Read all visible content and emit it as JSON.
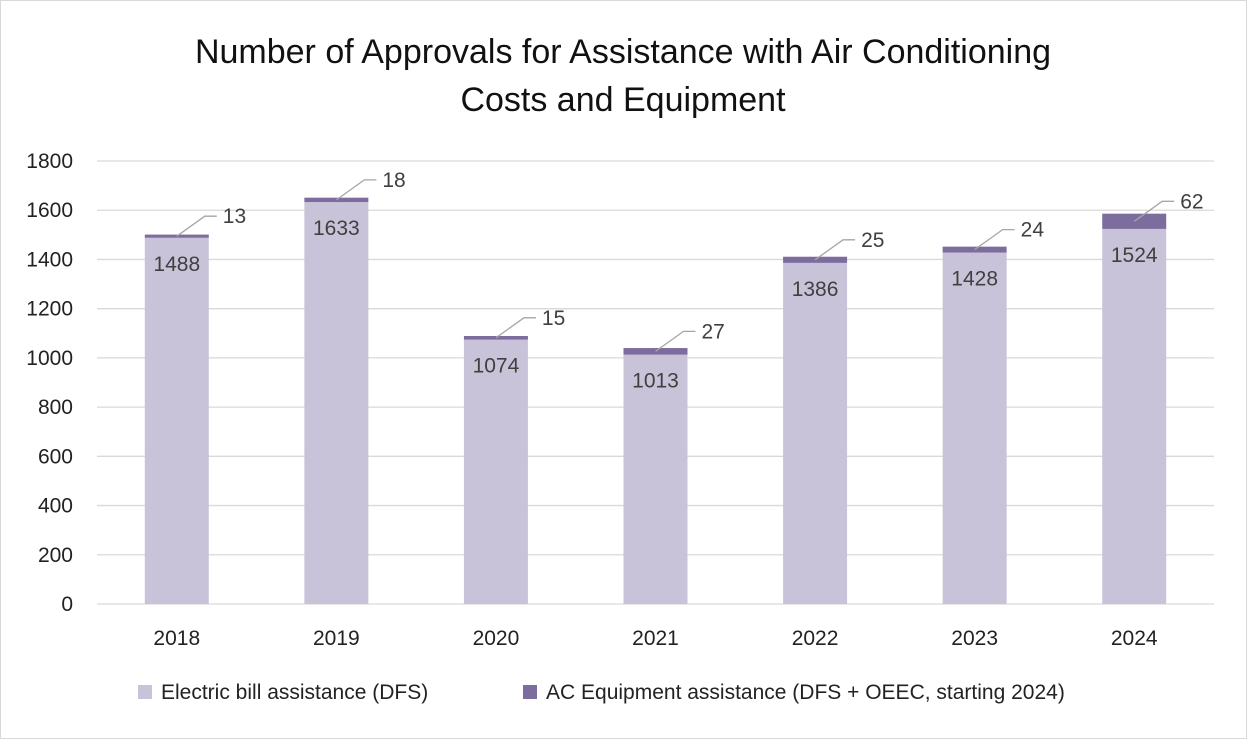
{
  "chart_data": {
    "type": "bar",
    "stacked": true,
    "title": "Number of Approvals for Assistance with Air Conditioning Costs and Equipment",
    "title_lines": [
      "Number of Approvals for Assistance with Air Conditioning",
      "Costs and Equipment"
    ],
    "categories": [
      "2018",
      "2019",
      "2020",
      "2021",
      "2022",
      "2023",
      "2024"
    ],
    "series": [
      {
        "name": "Electric bill assistance (DFS)",
        "color": "#c9c3d9",
        "values": [
          1488,
          1633,
          1074,
          1013,
          1386,
          1428,
          1524
        ]
      },
      {
        "name": "AC Equipment assistance (DFS + OEEC, starting 2024)",
        "color": "#7d6d9f",
        "values": [
          13,
          18,
          15,
          27,
          25,
          24,
          62
        ]
      }
    ],
    "xlabel": "",
    "ylabel": "",
    "ylim": [
      0,
      1800
    ],
    "yticks": [
      0,
      200,
      400,
      600,
      800,
      1000,
      1200,
      1400,
      1600,
      1800
    ],
    "grid": true,
    "legend_position": "bottom",
    "colors": {
      "gridline": "#d9d9d9",
      "leader_line": "#a6a6a6"
    }
  }
}
